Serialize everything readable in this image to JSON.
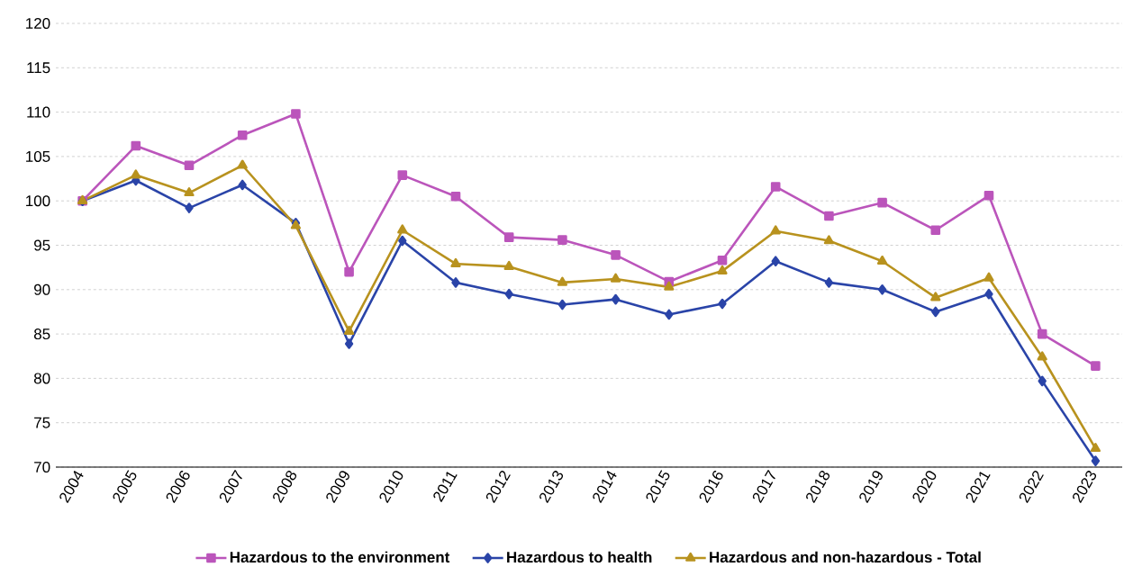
{
  "chart_data": {
    "type": "line",
    "categories": [
      "2004",
      "2005",
      "2006",
      "2007",
      "2008",
      "2009",
      "2010",
      "2011",
      "2012",
      "2013",
      "2014",
      "2015",
      "2016",
      "2017",
      "2018",
      "2019",
      "2020",
      "2021",
      "2022",
      "2023"
    ],
    "series": [
      {
        "name": "Hazardous to the environment",
        "color": "#bb55bb",
        "marker": "square",
        "values": [
          100,
          106.2,
          104.0,
          107.4,
          109.8,
          92.0,
          102.9,
          100.5,
          95.9,
          95.6,
          93.9,
          90.9,
          93.3,
          101.6,
          98.3,
          99.8,
          96.7,
          100.6,
          85.0,
          81.4
        ]
      },
      {
        "name": "Hazardous to health",
        "color": "#2a44a8",
        "marker": "diamond",
        "values": [
          100,
          102.3,
          99.2,
          101.8,
          97.5,
          83.9,
          95.5,
          90.8,
          89.5,
          88.3,
          88.9,
          87.2,
          88.4,
          93.2,
          90.8,
          90.0,
          87.5,
          89.5,
          79.7,
          70.7
        ]
      },
      {
        "name": "Hazardous and non-hazardous - Total",
        "color": "#b8921e",
        "marker": "triangle",
        "values": [
          100,
          102.9,
          100.9,
          104.0,
          97.2,
          85.3,
          96.7,
          92.9,
          92.6,
          90.8,
          91.2,
          90.3,
          92.1,
          96.6,
          95.5,
          93.2,
          89.1,
          91.3,
          82.4,
          72.1
        ]
      }
    ],
    "ylim": [
      70,
      120
    ],
    "yticks": [
      70,
      75,
      80,
      85,
      90,
      95,
      100,
      105,
      110,
      115,
      120
    ],
    "grid": "y",
    "legend": "bottom",
    "line_style": "solid"
  }
}
